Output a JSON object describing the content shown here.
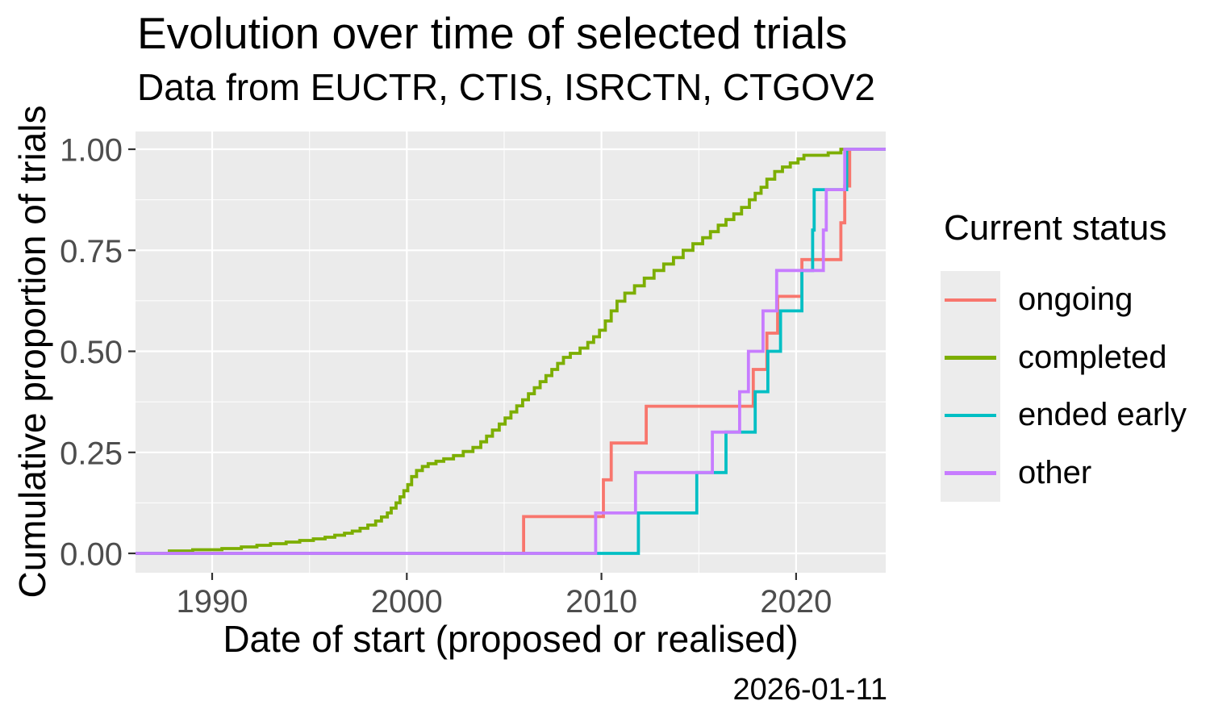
{
  "figure": {
    "title": "Evolution over time of selected trials",
    "subtitle": "Data from EUCTR, CTIS, ISRCTN, CTGOV2",
    "caption": "2026-01-11"
  },
  "axes": {
    "x": {
      "title": "Date of start (proposed or realised)",
      "ticks": [
        {
          "label": "1990",
          "year": 1990
        },
        {
          "label": "2000",
          "year": 2000
        },
        {
          "label": "2010",
          "year": 2010
        },
        {
          "label": "2020",
          "year": 2020
        }
      ],
      "minor_years": [
        1995,
        2005,
        2015
      ]
    },
    "y": {
      "title": "Cumulative proportion of trials",
      "ticks": [
        {
          "label": "0.00",
          "value": 0
        },
        {
          "label": "0.25",
          "value": 0.25
        },
        {
          "label": "0.50",
          "value": 0.5
        },
        {
          "label": "0.75",
          "value": 0.75
        },
        {
          "label": "1.00",
          "value": 1
        }
      ],
      "minor_values": [
        0.125,
        0.375,
        0.625,
        0.875
      ]
    }
  },
  "legend": {
    "title": "Current status",
    "items": [
      {
        "label": "ongoing",
        "color": "#F8766D"
      },
      {
        "label": "completed",
        "color": "#7CAE00"
      },
      {
        "label": "ended early",
        "color": "#00BFC4"
      },
      {
        "label": "other",
        "color": "#C77CFF"
      }
    ]
  },
  "colors": {
    "panel_background": "#EBEBEB",
    "gridline": "#FFFFFF",
    "tick_mark": "#333333",
    "tick_label": "#4D4D4D",
    "legend_key_background": "#ECECEC"
  },
  "chart_data": {
    "type": "line",
    "variant": "ecdf-step",
    "title": "Evolution over time of selected trials",
    "subtitle": "Data from EUCTR, CTIS, ISRCTN, CTGOV2",
    "xlabel": "Date of start (proposed or realised)",
    "ylabel": "Cumulative proportion of trials",
    "caption": "2026-01-11",
    "legend_title": "Current status",
    "legend_position": "right",
    "grid": true,
    "x_ticks": [
      1990,
      2000,
      2010,
      2020
    ],
    "x_range_years": [
      1986.1,
      2024.6
    ],
    "ylim": [
      0,
      1
    ],
    "y_ticks": [
      0,
      0.25,
      0.5,
      0.75,
      1
    ],
    "series": [
      {
        "name": "ongoing",
        "color": "#F8766D",
        "points": [
          [
            2006.0,
            0.091
          ],
          [
            2010.1,
            0.182
          ],
          [
            2010.5,
            0.273
          ],
          [
            2012.3,
            0.364
          ],
          [
            2017.8,
            0.455
          ],
          [
            2018.5,
            0.545
          ],
          [
            2019.05,
            0.636
          ],
          [
            2020.3,
            0.727
          ],
          [
            2022.3,
            0.818
          ],
          [
            2022.5,
            0.909
          ],
          [
            2022.75,
            1.0
          ]
        ]
      },
      {
        "name": "completed",
        "color": "#7CAE00",
        "points": [
          [
            1987.8,
            0.006
          ],
          [
            1989.0,
            0.009
          ],
          [
            1990.5,
            0.012
          ],
          [
            1991.5,
            0.016
          ],
          [
            1992.3,
            0.02
          ],
          [
            1993.0,
            0.024
          ],
          [
            1993.8,
            0.028
          ],
          [
            1994.5,
            0.032
          ],
          [
            1995.2,
            0.036
          ],
          [
            1995.8,
            0.04
          ],
          [
            1996.3,
            0.045
          ],
          [
            1996.8,
            0.05
          ],
          [
            1997.2,
            0.055
          ],
          [
            1997.6,
            0.062
          ],
          [
            1998.0,
            0.07
          ],
          [
            1998.4,
            0.08
          ],
          [
            1998.7,
            0.09
          ],
          [
            1999.0,
            0.1
          ],
          [
            1999.2,
            0.112
          ],
          [
            1999.45,
            0.125
          ],
          [
            1999.65,
            0.14
          ],
          [
            1999.85,
            0.155
          ],
          [
            2000.05,
            0.17
          ],
          [
            2000.25,
            0.19
          ],
          [
            2000.5,
            0.205
          ],
          [
            2000.8,
            0.215
          ],
          [
            2001.1,
            0.222
          ],
          [
            2001.5,
            0.228
          ],
          [
            2001.9,
            0.234
          ],
          [
            2002.4,
            0.242
          ],
          [
            2002.9,
            0.252
          ],
          [
            2003.4,
            0.262
          ],
          [
            2003.8,
            0.276
          ],
          [
            2004.1,
            0.29
          ],
          [
            2004.4,
            0.305
          ],
          [
            2004.75,
            0.32
          ],
          [
            2005.05,
            0.335
          ],
          [
            2005.35,
            0.35
          ],
          [
            2005.65,
            0.365
          ],
          [
            2005.95,
            0.38
          ],
          [
            2006.25,
            0.395
          ],
          [
            2006.55,
            0.41
          ],
          [
            2006.85,
            0.425
          ],
          [
            2007.15,
            0.44
          ],
          [
            2007.45,
            0.455
          ],
          [
            2007.75,
            0.47
          ],
          [
            2008.05,
            0.485
          ],
          [
            2008.4,
            0.495
          ],
          [
            2008.9,
            0.508
          ],
          [
            2009.3,
            0.522
          ],
          [
            2009.6,
            0.536
          ],
          [
            2009.9,
            0.552
          ],
          [
            2010.2,
            0.575
          ],
          [
            2010.5,
            0.6
          ],
          [
            2010.8,
            0.624
          ],
          [
            2011.2,
            0.644
          ],
          [
            2011.7,
            0.662
          ],
          [
            2012.2,
            0.681
          ],
          [
            2012.7,
            0.7
          ],
          [
            2013.2,
            0.716
          ],
          [
            2013.7,
            0.732
          ],
          [
            2014.2,
            0.75
          ],
          [
            2014.7,
            0.766
          ],
          [
            2015.2,
            0.781
          ],
          [
            2015.6,
            0.796
          ],
          [
            2016.0,
            0.812
          ],
          [
            2016.4,
            0.826
          ],
          [
            2016.8,
            0.84
          ],
          [
            2017.2,
            0.856
          ],
          [
            2017.6,
            0.875
          ],
          [
            2017.9,
            0.891
          ],
          [
            2018.2,
            0.906
          ],
          [
            2018.5,
            0.926
          ],
          [
            2018.9,
            0.945
          ],
          [
            2019.3,
            0.956
          ],
          [
            2019.7,
            0.966
          ],
          [
            2020.1,
            0.976
          ],
          [
            2020.4,
            0.985
          ],
          [
            2021.65,
            0.991
          ],
          [
            2022.3,
            1.0
          ]
        ]
      },
      {
        "name": "ended early",
        "color": "#00BFC4",
        "points": [
          [
            2011.9,
            0.1
          ],
          [
            2014.9,
            0.2
          ],
          [
            2016.4,
            0.3
          ],
          [
            2017.9,
            0.4
          ],
          [
            2018.55,
            0.5
          ],
          [
            2019.2,
            0.6
          ],
          [
            2020.3,
            0.7
          ],
          [
            2020.85,
            0.8
          ],
          [
            2020.93,
            0.9
          ],
          [
            2022.6,
            1.0
          ]
        ]
      },
      {
        "name": "other",
        "color": "#C77CFF",
        "points": [
          [
            2009.7,
            0.1
          ],
          [
            2011.75,
            0.2
          ],
          [
            2015.7,
            0.3
          ],
          [
            2017.1,
            0.4
          ],
          [
            2017.55,
            0.5
          ],
          [
            2018.3,
            0.6
          ],
          [
            2019.0,
            0.7
          ],
          [
            2021.4,
            0.8
          ],
          [
            2021.55,
            0.9
          ],
          [
            2022.5,
            1.0
          ]
        ]
      }
    ]
  }
}
